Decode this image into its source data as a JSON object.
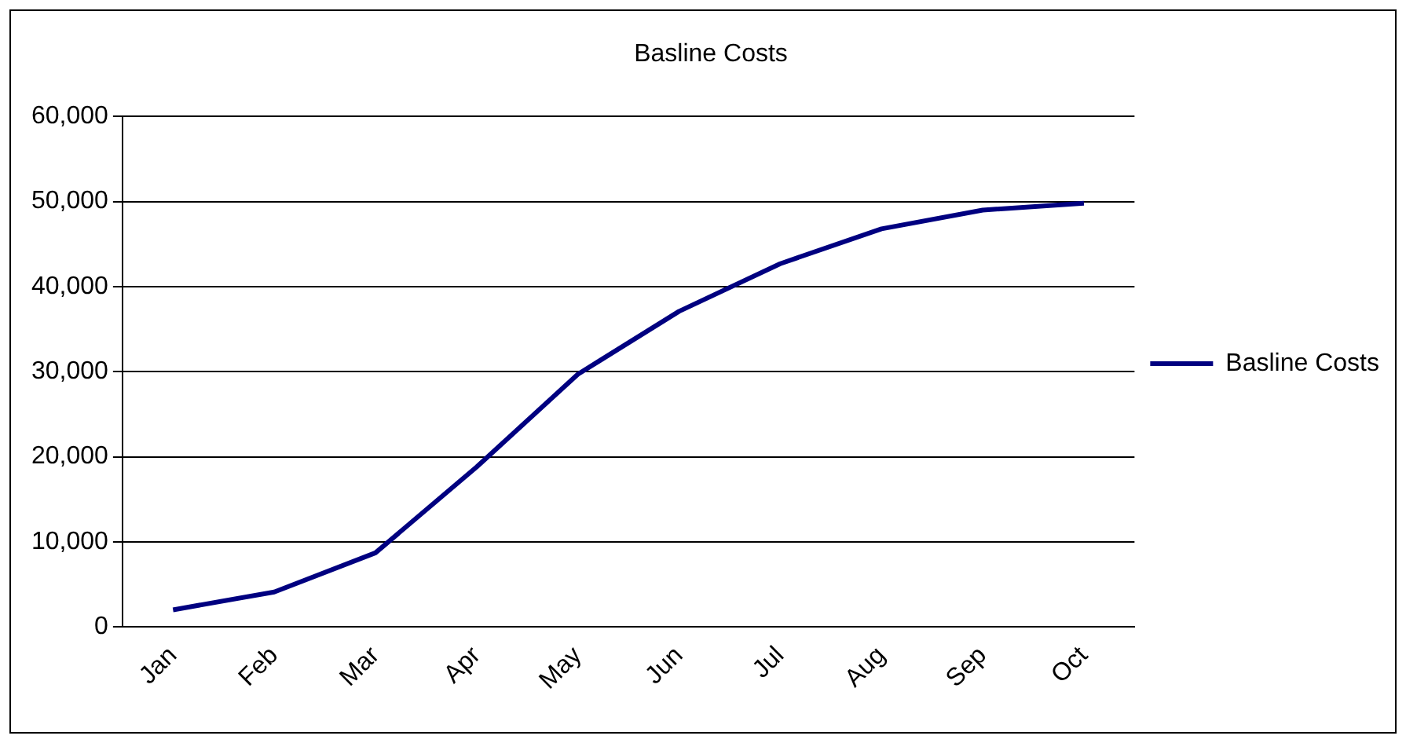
{
  "chart_data": {
    "type": "line",
    "title": "Basline Costs",
    "categories": [
      "Jan",
      "Feb",
      "Mar",
      "Apr",
      "May",
      "Jun",
      "Jul",
      "Aug",
      "Sep",
      "Oct"
    ],
    "series": [
      {
        "name": "Basline Costs",
        "color": "#000080",
        "values": [
          2000,
          4100,
          8700,
          18800,
          29700,
          37100,
          42700,
          46800,
          49000,
          49800
        ]
      }
    ],
    "ylim": [
      0,
      60000
    ],
    "yticks": [
      {
        "value": 0,
        "label": "0"
      },
      {
        "value": 10000,
        "label": "10,000"
      },
      {
        "value": 20000,
        "label": "20,000"
      },
      {
        "value": 30000,
        "label": "30,000"
      },
      {
        "value": 40000,
        "label": "40,000"
      },
      {
        "value": 50000,
        "label": "50,000"
      },
      {
        "value": 60000,
        "label": "60,000"
      }
    ],
    "grid": "y",
    "legend": "right",
    "marker": "none",
    "line_style": "solid"
  }
}
